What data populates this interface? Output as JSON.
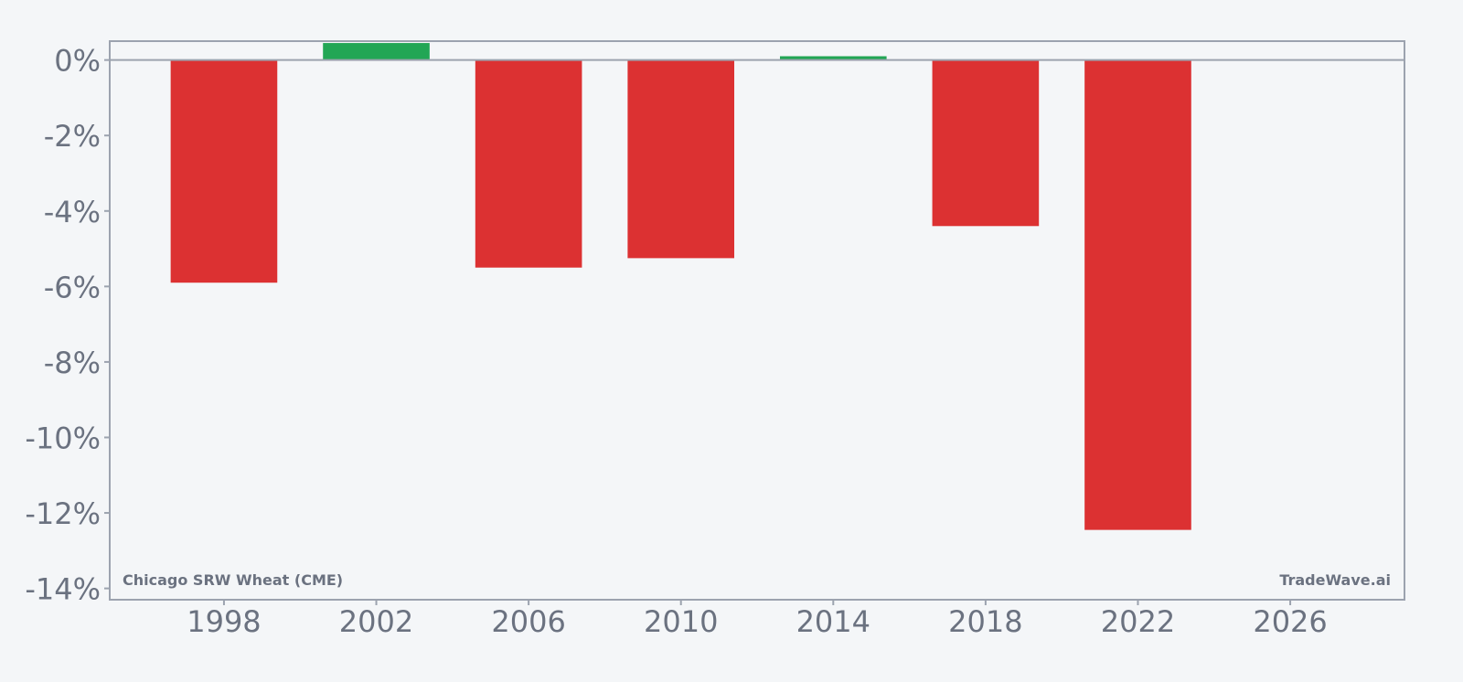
{
  "chart_data": {
    "type": "bar",
    "x": [
      1998,
      2002,
      2006,
      2010,
      2014,
      2018,
      2022
    ],
    "values": [
      -5.9,
      0.45,
      -5.5,
      -5.25,
      0.1,
      -4.4,
      -12.45
    ],
    "xlim": [
      1995,
      2029
    ],
    "ylim": [
      -14.3,
      0.5
    ],
    "x_ticks": [
      "1998",
      "2002",
      "2006",
      "2010",
      "2014",
      "2018",
      "2022",
      "2026"
    ],
    "x_tick_values": [
      1998,
      2002,
      2006,
      2010,
      2014,
      2018,
      2022,
      2026
    ],
    "y_ticks": [
      "0%",
      "-2%",
      "-4%",
      "-6%",
      "-8%",
      "-10%",
      "-12%",
      "-14%"
    ],
    "y_tick_values": [
      0,
      -2,
      -4,
      -6,
      -8,
      -10,
      -12,
      -14
    ],
    "annotations": {
      "bottom_left": "Chicago SRW Wheat (CME)",
      "bottom_right": "TradeWave.ai"
    },
    "grid": false,
    "legend": "none"
  },
  "colors": {
    "positive": "#22a655",
    "negative": "#dc3132",
    "axis": "#9ca3af",
    "text": "#6b7280",
    "background": "#f4f6f8"
  }
}
